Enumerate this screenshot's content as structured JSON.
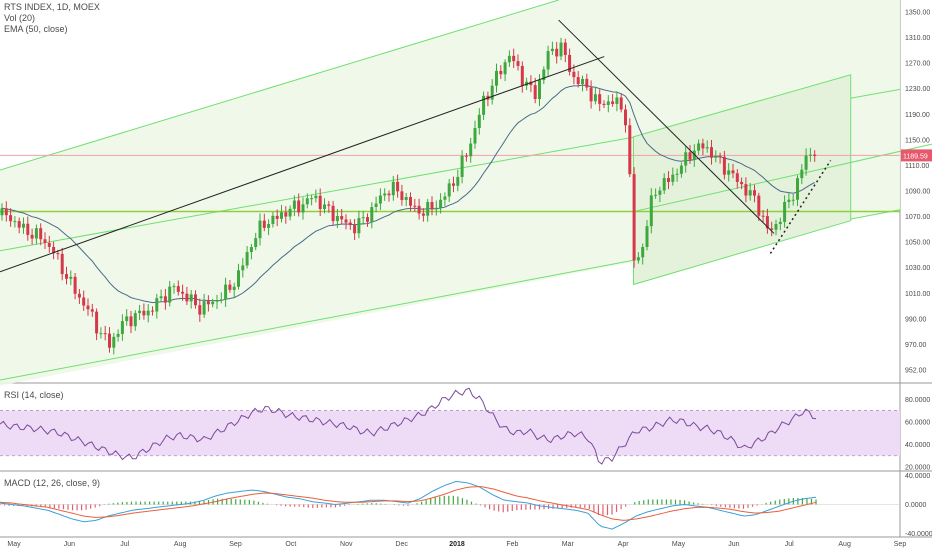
{
  "header": {
    "title": "RTS INDEX, 1D, MOEX",
    "volume": "Vol (20)",
    "ema": "EMA (50, close)"
  },
  "rsi_label": "RSI (14, close)",
  "macd_label": "MACD (12, 26, close, 9)",
  "colors": {
    "up": "#3ea83e",
    "down": "#d6374a",
    "channel": "#6fe06f",
    "channel_fill": "#eef7e8",
    "ema": "#4a6a8a",
    "rsi_line": "#7a4a9a",
    "rsi_band": "#eedcf7",
    "macd_line": "#3aa0d8",
    "signal_line": "#e8603c",
    "price_tag": "#e8576a",
    "support": "#8fce3f"
  },
  "chart_data": [
    {
      "type": "candlestick",
      "title": "RTS INDEX, 1D, MOEX",
      "ylim": [
        940,
        1360
      ],
      "y_ticks": [
        "1350.00",
        "1310.00",
        "1270.00",
        "1230.00",
        "1190.00",
        "1150.00",
        "1110.00",
        "1090.00",
        "1070.00",
        "1050.00",
        "1030.00",
        "1010.00",
        "990.00",
        "970.00",
        "952.00"
      ],
      "x_ticks": [
        "May",
        "Jun",
        "Jul",
        "Aug",
        "Sep",
        "Oct",
        "Nov",
        "Dec",
        "2018",
        "Feb",
        "Mar",
        "Apr",
        "May",
        "Jun",
        "Jul",
        "Aug",
        "Sep"
      ],
      "x_tick_bold": [
        "2018"
      ],
      "last_price": "1189.59",
      "close_path": [
        [
          "2017-05-01",
          1124
        ],
        [
          "2017-05-10",
          1108
        ],
        [
          "2017-05-20",
          1099
        ],
        [
          "2017-05-26",
          1085
        ],
        [
          "2017-06-01",
          1062
        ],
        [
          "2017-06-08",
          1038
        ],
        [
          "2017-06-15",
          1018
        ],
        [
          "2017-06-20",
          998
        ],
        [
          "2017-06-26",
          982
        ],
        [
          "2017-07-03",
          1005
        ],
        [
          "2017-07-10",
          1014
        ],
        [
          "2017-07-17",
          1018
        ],
        [
          "2017-07-24",
          1032
        ],
        [
          "2017-07-31",
          1045
        ],
        [
          "2017-08-07",
          1035
        ],
        [
          "2017-08-14",
          1022
        ],
        [
          "2017-08-21",
          1028
        ],
        [
          "2017-08-28",
          1038
        ],
        [
          "2017-09-04",
          1055
        ],
        [
          "2017-09-11",
          1090
        ],
        [
          "2017-09-18",
          1115
        ],
        [
          "2017-09-25",
          1120
        ],
        [
          "2017-10-02",
          1130
        ],
        [
          "2017-10-09",
          1135
        ],
        [
          "2017-10-16",
          1145
        ],
        [
          "2017-10-23",
          1130
        ],
        [
          "2017-10-30",
          1120
        ],
        [
          "2017-11-06",
          1110
        ],
        [
          "2017-11-13",
          1120
        ],
        [
          "2017-11-20",
          1140
        ],
        [
          "2017-11-27",
          1155
        ],
        [
          "2017-12-04",
          1145
        ],
        [
          "2017-12-11",
          1128
        ],
        [
          "2017-12-18",
          1130
        ],
        [
          "2017-12-25",
          1140
        ],
        [
          "2018-01-03",
          1170
        ],
        [
          "2018-01-10",
          1205
        ],
        [
          "2018-01-17",
          1250
        ],
        [
          "2018-01-24",
          1275
        ],
        [
          "2018-01-31",
          1300
        ],
        [
          "2018-02-07",
          1275
        ],
        [
          "2018-02-14",
          1255
        ],
        [
          "2018-02-21",
          1300
        ],
        [
          "2018-02-28",
          1310
        ],
        [
          "2018-03-07",
          1275
        ],
        [
          "2018-03-14",
          1265
        ],
        [
          "2018-03-21",
          1245
        ],
        [
          "2018-03-28",
          1250
        ],
        [
          "2018-04-04",
          1240
        ],
        [
          "2018-04-06",
          1205
        ],
        [
          "2018-04-09",
          1075
        ],
        [
          "2018-04-13",
          1080
        ],
        [
          "2018-04-20",
          1150
        ],
        [
          "2018-04-27",
          1160
        ],
        [
          "2018-05-04",
          1175
        ],
        [
          "2018-05-11",
          1195
        ],
        [
          "2018-05-18",
          1200
        ],
        [
          "2018-05-25",
          1185
        ],
        [
          "2018-06-01",
          1170
        ],
        [
          "2018-06-08",
          1155
        ],
        [
          "2018-06-15",
          1140
        ],
        [
          "2018-06-22",
          1105
        ],
        [
          "2018-06-25",
          1110
        ],
        [
          "2018-06-29",
          1125
        ],
        [
          "2018-07-06",
          1150
        ],
        [
          "2018-07-13",
          1190
        ],
        [
          "2018-07-18",
          1195
        ]
      ]
    },
    {
      "type": "line",
      "title": "RSI (14, close)",
      "ylim": [
        20,
        90
      ],
      "y_ticks": [
        "80.0000",
        "60.0000",
        "40.0000",
        "20.0000"
      ],
      "band": [
        30,
        70
      ],
      "values": [
        58,
        56,
        55,
        54,
        52,
        50,
        46,
        42,
        38,
        34,
        30,
        28,
        34,
        40,
        46,
        48,
        46,
        44,
        50,
        56,
        62,
        68,
        72,
        70,
        66,
        64,
        62,
        60,
        58,
        56,
        52,
        50,
        54,
        58,
        62,
        66,
        72,
        80,
        85,
        88,
        80,
        66,
        54,
        50,
        52,
        46,
        44,
        48,
        50,
        46,
        24,
        28,
        40,
        52,
        54,
        58,
        62,
        60,
        56,
        54,
        50,
        44,
        36,
        42,
        48,
        56,
        62,
        70,
        64
      ]
    },
    {
      "type": "line",
      "title": "MACD (12, 26, close, 9)",
      "ylim": [
        -45,
        45
      ],
      "y_ticks": [
        "40.0000",
        "0.0000",
        "-40.0000"
      ],
      "macd": [
        2,
        0,
        -2,
        -5,
        -8,
        -14,
        -20,
        -24,
        -22,
        -16,
        -12,
        -8,
        -6,
        -4,
        -2,
        0,
        2,
        6,
        12,
        16,
        18,
        20,
        18,
        14,
        10,
        8,
        4,
        2,
        0,
        2,
        4,
        6,
        6,
        4,
        2,
        8,
        18,
        26,
        32,
        30,
        24,
        14,
        6,
        4,
        2,
        -2,
        -4,
        -6,
        -8,
        -12,
        -30,
        -34,
        -26,
        -16,
        -10,
        -6,
        -2,
        0,
        -2,
        -4,
        -8,
        -12,
        -16,
        -14,
        -8,
        -2,
        4,
        8,
        10
      ],
      "signal": [
        3,
        2,
        0,
        -2,
        -4,
        -8,
        -12,
        -16,
        -18,
        -17,
        -15,
        -12,
        -10,
        -8,
        -6,
        -4,
        -2,
        1,
        4,
        8,
        11,
        14,
        16,
        15,
        13,
        11,
        9,
        6,
        4,
        3,
        3,
        4,
        5,
        5,
        4,
        5,
        9,
        14,
        20,
        24,
        25,
        22,
        17,
        12,
        9,
        5,
        2,
        -1,
        -4,
        -7,
        -14,
        -20,
        -22,
        -20,
        -17,
        -13,
        -9,
        -6,
        -4,
        -4,
        -5,
        -7,
        -10,
        -12,
        -11,
        -9,
        -5,
        -1,
        3
      ]
    }
  ]
}
